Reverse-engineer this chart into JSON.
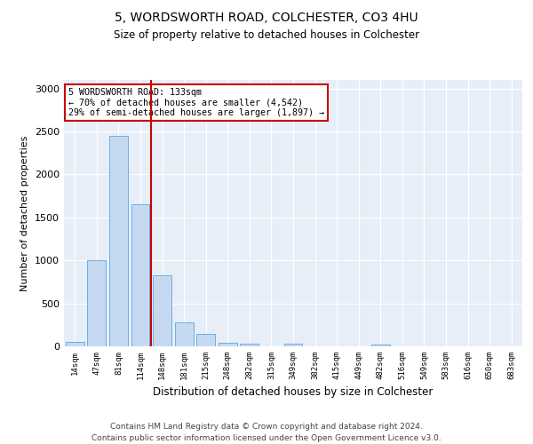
{
  "title1": "5, WORDSWORTH ROAD, COLCHESTER, CO3 4HU",
  "title2": "Size of property relative to detached houses in Colchester",
  "xlabel": "Distribution of detached houses by size in Colchester",
  "ylabel": "Number of detached properties",
  "bar_labels": [
    "14sqm",
    "47sqm",
    "81sqm",
    "114sqm",
    "148sqm",
    "181sqm",
    "215sqm",
    "248sqm",
    "282sqm",
    "315sqm",
    "349sqm",
    "382sqm",
    "415sqm",
    "449sqm",
    "482sqm",
    "516sqm",
    "549sqm",
    "583sqm",
    "616sqm",
    "650sqm",
    "683sqm"
  ],
  "bar_values": [
    55,
    1000,
    2450,
    1650,
    830,
    280,
    140,
    40,
    30,
    0,
    30,
    0,
    0,
    0,
    25,
    0,
    0,
    0,
    0,
    0,
    0
  ],
  "bar_color": "#c5d9f0",
  "bar_edge_color": "#6aaee8",
  "vline_color": "#cc0000",
  "annotation_line1": "5 WORDSWORTH ROAD: 133sqm",
  "annotation_line2": "← 70% of detached houses are smaller (4,542)",
  "annotation_line3": "29% of semi-detached houses are larger (1,897) →",
  "annotation_box_color": "#ffffff",
  "annotation_box_edge": "#cc0000",
  "ylim": [
    0,
    3100
  ],
  "yticks": [
    0,
    500,
    1000,
    1500,
    2000,
    2500,
    3000
  ],
  "background_color": "#e8eef8",
  "footer1": "Contains HM Land Registry data © Crown copyright and database right 2024.",
  "footer2": "Contains public sector information licensed under the Open Government Licence v3.0."
}
